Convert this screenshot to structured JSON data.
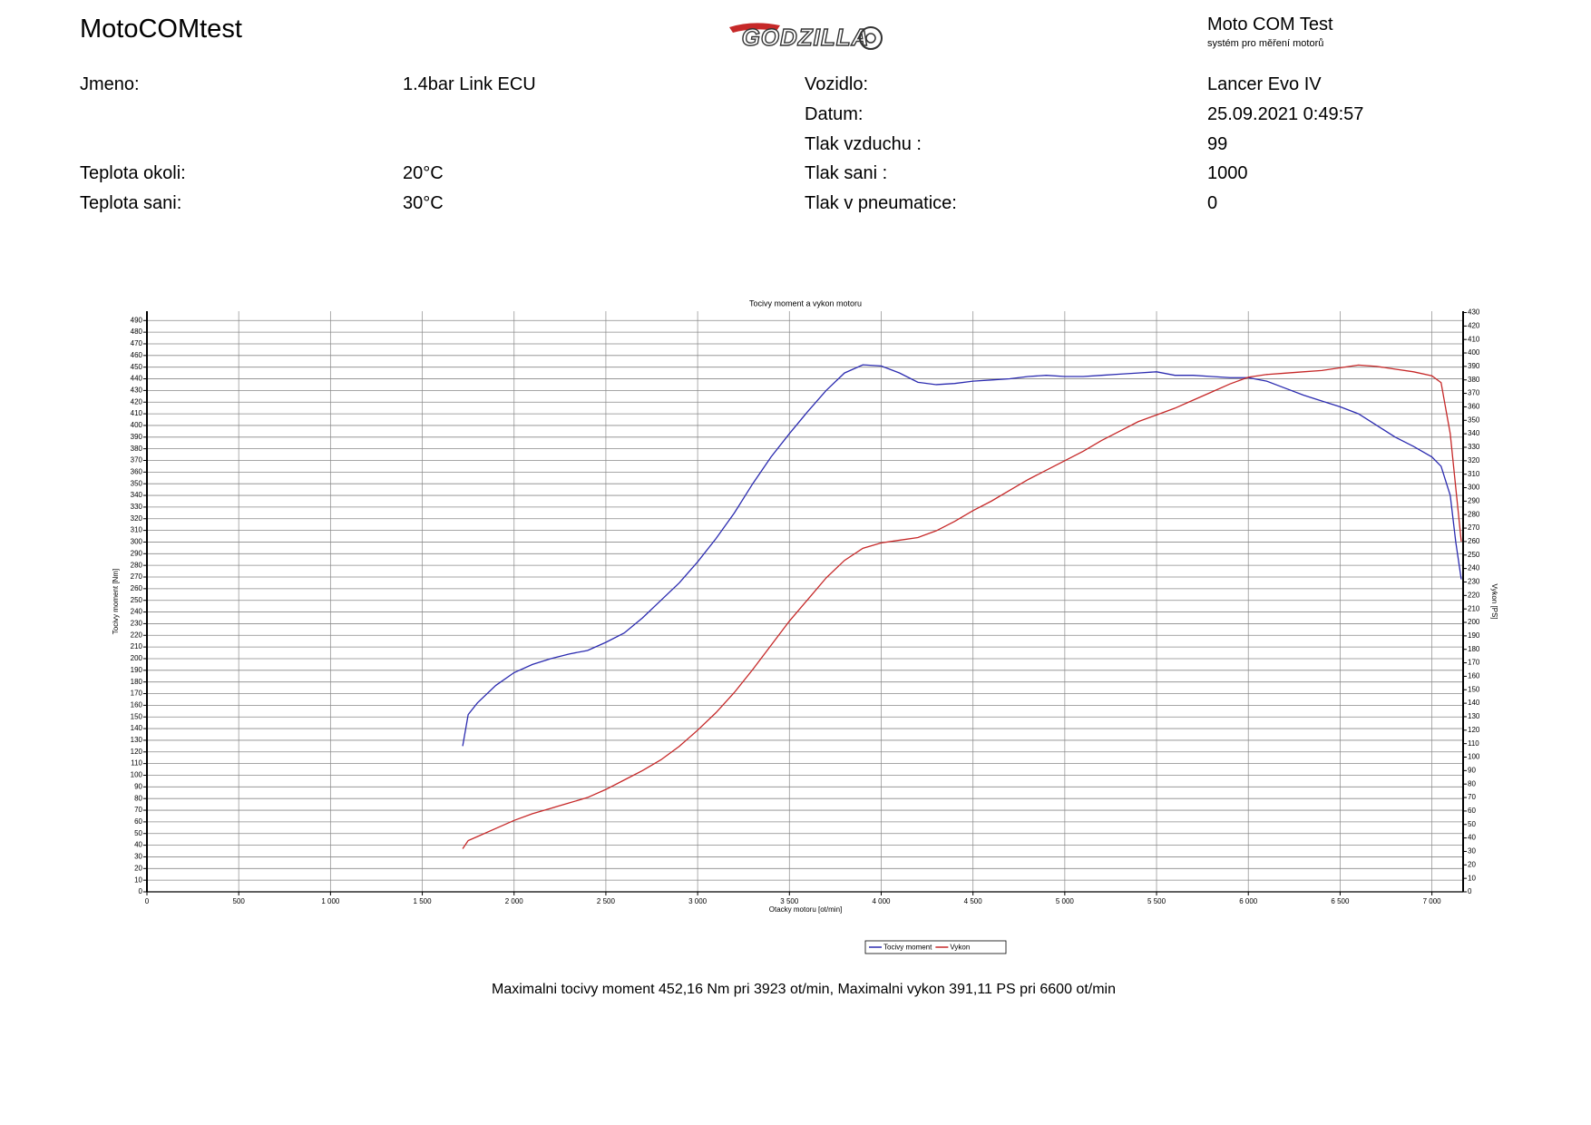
{
  "header": {
    "title": "MotoCOMtest",
    "logo": "GODZILLA",
    "brand": "Moto COM Test",
    "brand_subtitle": "systém pro měření motorů"
  },
  "info": {
    "left": [
      {
        "label": "Jmeno:",
        "value": "1.4bar Link ECU"
      },
      {
        "label": "Teplota okoli:",
        "value": "20°C"
      },
      {
        "label": "Teplota sani:",
        "value": "30°C"
      }
    ],
    "right": [
      {
        "label": "Vozidlo:",
        "value": "Lancer Evo IV"
      },
      {
        "label": "Datum:",
        "value": "25.09.2021 0:49:57"
      },
      {
        "label": "Tlak vzduchu :",
        "value": "99"
      },
      {
        "label": "Tlak sani :",
        "value": "1000"
      },
      {
        "label": "Tlak v pneumatice:",
        "value": "0"
      }
    ]
  },
  "chart_data": {
    "type": "line",
    "title": "Tocivy moment a vykon motoru",
    "x_label": "Otacky motoru [ot/min]",
    "y_label": "Tocivy moment [Nm]",
    "y2_label": "Vykon [PS]",
    "xlim": [
      0,
      7170
    ],
    "ylim": [
      0,
      498
    ],
    "y2lim": [
      0,
      431
    ],
    "grid": true,
    "legend": "bottom",
    "xticks": [
      0,
      500,
      {
        "value": 1000,
        "label": "1 000"
      },
      {
        "value": 1500,
        "label": "1 500"
      },
      {
        "value": 2000,
        "label": "2 000"
      },
      {
        "value": 2500,
        "label": "2 500"
      },
      {
        "value": 3000,
        "label": "3 000"
      },
      {
        "value": 3500,
        "label": "3 500"
      },
      {
        "value": 4000,
        "label": "4 000"
      },
      {
        "value": 4500,
        "label": "4 500"
      },
      {
        "value": 5000,
        "label": "5 000"
      },
      {
        "value": 5500,
        "label": "5 500"
      },
      {
        "value": 6000,
        "label": "6 000"
      },
      {
        "value": 6500,
        "label": "6 500"
      },
      {
        "value": 7000,
        "label": "7 000"
      }
    ],
    "yticks": [
      0,
      10,
      20,
      30,
      40,
      50,
      60,
      70,
      80,
      90,
      100,
      110,
      120,
      130,
      140,
      150,
      160,
      170,
      180,
      190,
      200,
      210,
      220,
      230,
      240,
      250,
      260,
      270,
      280,
      290,
      300,
      310,
      320,
      330,
      340,
      350,
      360,
      370,
      380,
      390,
      400,
      410,
      420,
      430,
      440,
      450,
      460,
      470,
      480,
      490
    ],
    "y2ticks": [
      0,
      10,
      20,
      30,
      40,
      50,
      60,
      70,
      80,
      90,
      100,
      110,
      120,
      130,
      140,
      150,
      160,
      170,
      180,
      190,
      200,
      210,
      220,
      230,
      240,
      250,
      260,
      270,
      280,
      290,
      300,
      310,
      320,
      330,
      340,
      350,
      360,
      370,
      380,
      390,
      400,
      410,
      420,
      430
    ],
    "series": [
      {
        "name": "Tocivy moment",
        "color": "#2b2bb0",
        "x": [
          1720,
          1750,
          1800,
          1900,
          2000,
          2100,
          2200,
          2300,
          2400,
          2500,
          2600,
          2700,
          2800,
          2900,
          3000,
          3100,
          3200,
          3300,
          3400,
          3500,
          3600,
          3700,
          3800,
          3900,
          4000,
          4100,
          4200,
          4300,
          4400,
          4500,
          4600,
          4700,
          4800,
          4900,
          5000,
          5100,
          5200,
          5300,
          5400,
          5500,
          5600,
          5700,
          5800,
          5900,
          6000,
          6100,
          6200,
          6300,
          6400,
          6500,
          6600,
          6700,
          6800,
          6900,
          7000,
          7050,
          7100,
          7130,
          7160
        ],
        "values": [
          125,
          152,
          162,
          177,
          188,
          195,
          200,
          204,
          207,
          214,
          222,
          235,
          250,
          265,
          283,
          303,
          325,
          350,
          373,
          393,
          412,
          430,
          445,
          452,
          451,
          445,
          437,
          435,
          436,
          438,
          439,
          440,
          442,
          443,
          442,
          442,
          443,
          444,
          445,
          446,
          443,
          443,
          442,
          441,
          441,
          438,
          432,
          426,
          421,
          416,
          410,
          400,
          390,
          382,
          373,
          365,
          340,
          300,
          268
        ]
      },
      {
        "name": "Vykon",
        "color": "#c62828",
        "axis": "y2",
        "x": [
          1720,
          1750,
          1800,
          1900,
          2000,
          2100,
          2200,
          2300,
          2400,
          2500,
          2600,
          2700,
          2800,
          2900,
          3000,
          3100,
          3200,
          3300,
          3400,
          3500,
          3600,
          3700,
          3800,
          3900,
          4000,
          4100,
          4200,
          4300,
          4400,
          4500,
          4600,
          4700,
          4800,
          4900,
          5000,
          5100,
          5200,
          5300,
          5400,
          5500,
          5600,
          5700,
          5800,
          5900,
          6000,
          6100,
          6200,
          6300,
          6400,
          6500,
          6600,
          6700,
          6800,
          6900,
          7000,
          7050,
          7100,
          7130,
          7160
        ],
        "values": [
          32,
          38,
          41,
          47,
          53,
          58,
          62,
          66,
          70,
          76,
          83,
          90,
          98,
          108,
          120,
          133,
          148,
          165,
          183,
          201,
          217,
          233,
          246,
          255,
          259,
          261,
          263,
          268,
          275,
          283,
          290,
          298,
          306,
          313,
          320,
          327,
          335,
          342,
          349,
          354,
          359,
          365,
          371,
          377,
          382,
          384,
          385,
          386,
          387,
          389,
          391,
          390,
          388,
          386,
          383,
          378,
          340,
          300,
          260
        ]
      }
    ],
    "summary": "Maximalni tocivy moment 452,16 Nm pri 3923 ot/min,  Maximalni vykon 391,11 PS pri 6600 ot/min"
  }
}
